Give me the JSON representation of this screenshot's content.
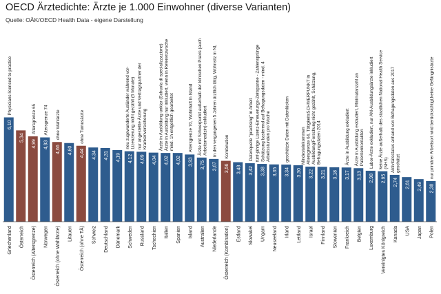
{
  "chart_data": {
    "type": "bar",
    "title": "OECD Ärztedichte: Ärzte je 1.000 Einwohner (diverse Varianten)",
    "subtitle": "Quelle: OÄK/OECD Health Data - eigene Darstellung",
    "xlabel": "",
    "ylabel": "",
    "ylim": [
      0,
      6.2
    ],
    "grid": false,
    "legend": "none",
    "colors": {
      "blue": "#2e5c8e",
      "brown": "#8b4a3f",
      "baseline": "#4a4a4a",
      "text": "#1f1f1f"
    },
    "categories": [
      "Griechenland",
      "Österreich",
      "Österreich (Altersgrenze)",
      "Norwegen",
      "Österreich (ohne Wahlärzte)",
      "Litauen",
      "Österreich (ohne TÄ)",
      "Schweiz",
      "Deutschland",
      "Dänemark",
      "Schweden",
      "Russland",
      "Tschechien",
      "Italien",
      "Spanien",
      "Island",
      "Australien",
      "Niederlande",
      "Österreich (Kombination)",
      "Estland",
      "Slowakei",
      "Ungarn",
      "Neuseeland",
      "Irland",
      "Lettland",
      "Israel",
      "Finnland",
      "Slowenien",
      "Frankreich",
      "Belgien",
      "Luxemburg",
      "Vereinigtes Königreich",
      "Kanada",
      "USA",
      "Japan",
      "Polen"
    ],
    "values": [
      6.1,
      5.34,
      4.99,
      4.93,
      4.66,
      4.6,
      4.44,
      4.34,
      4.31,
      4.19,
      4.12,
      4.09,
      4.04,
      4.02,
      4.02,
      3.93,
      3.75,
      3.67,
      3.56,
      3.48,
      3.42,
      3.38,
      3.35,
      3.34,
      3.3,
      3.22,
      3.21,
      3.18,
      3.17,
      3.13,
      2.98,
      2.95,
      2.74,
      2.61,
      2.49,
      2.38
    ],
    "value_labels": [
      "6,10",
      "5,34",
      "4,99",
      "4,93",
      "4,66",
      "4,60",
      "4,44",
      "4,34",
      "4,31",
      "4,19",
      "4,12",
      "4,09",
      "4,04",
      "4,02",
      "4,02",
      "3,93",
      "3,75",
      "3,67",
      "3,56",
      "3,48",
      "3,42",
      "3,38",
      "3,35",
      "3,34",
      "3,30",
      "3,22",
      "3,21",
      "3,18",
      "3,17",
      "3,13",
      "2,98",
      "2,95",
      "2,74",
      "2,61",
      "2,49",
      "2,38"
    ],
    "highlight": [
      false,
      true,
      true,
      false,
      true,
      false,
      true,
      false,
      false,
      false,
      false,
      false,
      false,
      false,
      false,
      false,
      false,
      false,
      true,
      false,
      false,
      false,
      false,
      false,
      false,
      false,
      false,
      false,
      false,
      false,
      false,
      false,
      false,
      false,
      false,
      false
    ],
    "annotations": [
      {
        "bar": 0,
        "lines": [
          "Physicians licensed to practice"
        ]
      },
      {
        "bar": 2,
        "lines": [
          "Altersgrenze 65"
        ]
      },
      {
        "bar": 3,
        "lines": [
          "Altersgrenze 74"
        ]
      },
      {
        "bar": 4,
        "lines": [
          "ohne Wahlärzte"
        ]
      },
      {
        "bar": 6,
        "lines": [
          "ohne Turnusärzte"
        ]
      },
      {
        "bar": 10,
        "lines": [
          "neu zugewanderte Ausländer während vor-",
          "Lizenzierung nicht gezählt (6 Monate)"
        ]
      },
      {
        "bar": 11,
        "lines": [
          "nur angestellte Ärzte und Vertragspartner der",
          "Krankenversicherung"
        ]
      },
      {
        "bar": 13,
        "lines": [
          "Ärzte in Ausbildung unklar (Schuola di specializzazione)",
          "Ärzte in Ausbildung nur inkludiert, wenn in Referenzwoche",
          "mind. 1h entgeltlich gearbeitet"
        ]
      },
      {
        "bar": 15,
        "lines": [
          "Altersgrenze 70, Wohnhaft in Island"
        ]
      },
      {
        "bar": 16,
        "lines": [
          "Ärzte mit Schwerpunkt außerhalb der klinischen Praxis (auch",
          "Arbeitsmedizin) exkludiert"
        ]
      },
      {
        "bar": 17,
        "lines": [
          "in den vergangenen 5 Jahren ärztlich tätig, Wohnsitz in NL"
        ]
      },
      {
        "bar": 18,
        "lines": [
          "Kombination"
        ]
      },
      {
        "bar": 20,
        "lines": [
          "Datenquelle \"practising\" in Arbeit"
        ]
      },
      {
        "bar": 21,
        "lines": [
          "fünf-jährige Lizenz-Erneuerungs-Zeitspanne - Zahlensprünge",
          "Schätzung basierend auf Befragungsdaten - mind. 4",
          "Arbeitsstunden pro Woche"
        ]
      },
      {
        "bar": 23,
        "lines": [
          "geschätzte Daten mit Datenlücken"
        ]
      },
      {
        "bar": 25,
        "lines": [
          "Mindesteinkommen",
          "Altersgrenze 64, TätigkeitsSCHWERPUNKT in",
          "Ausbildung/Forschung nicht gezählt, Schätzung,",
          "Befragungsdaten 2014"
        ]
      },
      {
        "bar": 28,
        "lines": [
          "Ärzte in Ausbildung exkludiert"
        ]
      },
      {
        "bar": 29,
        "lines": [
          "Ärzte in Ausbildung exkludiert, Minimalanzahl an",
          "Patientenkontakten"
        ]
      },
      {
        "bar": 30,
        "lines": [
          "Labor-Ärzte exkludiert, nur AM-Ausbildungsärzte inkludiert"
        ]
      },
      {
        "bar": 31,
        "lines": [
          "keine Ärzte außerhalb des staatlichen National Health Service",
          "(NHS)"
        ]
      },
      {
        "bar": 32,
        "lines": [
          "Aktivitätsstatus anhand von Befragungsdaten aus 2017",
          "geschätzt"
        ]
      },
      {
        "bar": 35,
        "lines": [
          "nur primärer Arbeitsort wird berücksichtigt,keine Gefängnisärzte"
        ]
      }
    ]
  }
}
